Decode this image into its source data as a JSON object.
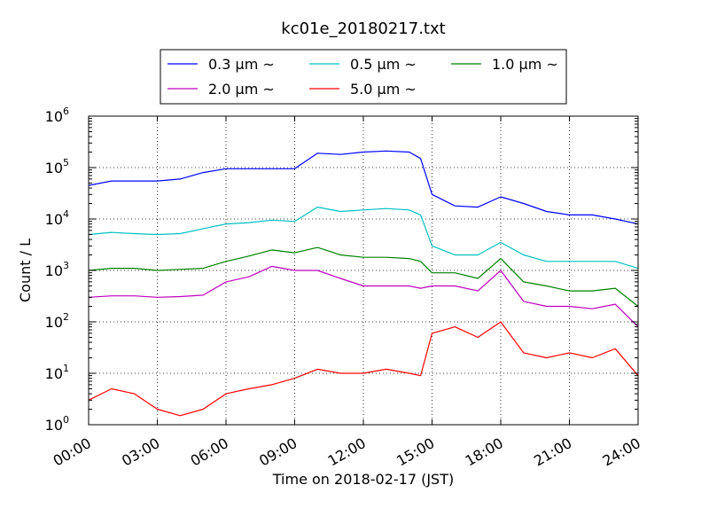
{
  "chart_data": {
    "type": "line",
    "title": "kc01e_20180217.txt",
    "xlabel": "Time on 2018-02-17 (JST)",
    "ylabel": "Count / L",
    "y_scale": "log",
    "ylim": [
      1,
      1000000
    ],
    "xlim": [
      "00:00",
      "24:00"
    ],
    "x_ticks": [
      "00:00",
      "03:00",
      "06:00",
      "09:00",
      "12:00",
      "15:00",
      "18:00",
      "21:00",
      "24:00"
    ],
    "y_ticks": [
      {
        "base": "10",
        "exp": "0"
      },
      {
        "base": "10",
        "exp": "1"
      },
      {
        "base": "10",
        "exp": "2"
      },
      {
        "base": "10",
        "exp": "3"
      },
      {
        "base": "10",
        "exp": "4"
      },
      {
        "base": "10",
        "exp": "5"
      },
      {
        "base": "10",
        "exp": "6"
      }
    ],
    "grid": true,
    "legend_position": "top-center",
    "x_hours": [
      0,
      1,
      2,
      3,
      4,
      5,
      6,
      7,
      8,
      9,
      10,
      11,
      12,
      13,
      14,
      14.5,
      15,
      16,
      17,
      18,
      19,
      20,
      21,
      22,
      23,
      24
    ],
    "series": [
      {
        "name": "0.3 μm ~",
        "color": "#0000ff",
        "values": [
          45000,
          55000,
          55000,
          55000,
          60000,
          80000,
          95000,
          95000,
          95000,
          95000,
          190000,
          180000,
          200000,
          210000,
          200000,
          150000,
          30000,
          18000,
          17000,
          27000,
          20000,
          14000,
          12000,
          12000,
          10000,
          8000
        ]
      },
      {
        "name": "0.5 μm ~",
        "color": "#00bfbf",
        "values": [
          5000,
          5500,
          5200,
          5000,
          5200,
          6500,
          8000,
          8500,
          9500,
          9000,
          17000,
          14000,
          15000,
          16000,
          15000,
          12000,
          3000,
          2000,
          2000,
          3500,
          2000,
          1500,
          1500,
          1500,
          1500,
          1100
        ]
      },
      {
        "name": "1.0 μm ~",
        "color": "#008000",
        "values": [
          1000,
          1100,
          1100,
          1000,
          1050,
          1100,
          1500,
          1900,
          2500,
          2200,
          2800,
          2000,
          1800,
          1800,
          1700,
          1500,
          900,
          900,
          700,
          1700,
          600,
          500,
          400,
          400,
          450,
          200
        ]
      },
      {
        "name": "2.0 μm ~",
        "color": "#bf00bf",
        "values": [
          300,
          320,
          320,
          300,
          310,
          330,
          600,
          750,
          1200,
          1000,
          1000,
          700,
          500,
          500,
          500,
          450,
          500,
          500,
          400,
          1000,
          250,
          200,
          200,
          180,
          220,
          80
        ]
      },
      {
        "name": "5.0 μm ~",
        "color": "#ff0000",
        "values": [
          3,
          5,
          4,
          2,
          1.5,
          2,
          4,
          5,
          6,
          8,
          12,
          10,
          10,
          12,
          10,
          9,
          60,
          80,
          50,
          100,
          25,
          20,
          25,
          20,
          30,
          9
        ]
      }
    ]
  }
}
